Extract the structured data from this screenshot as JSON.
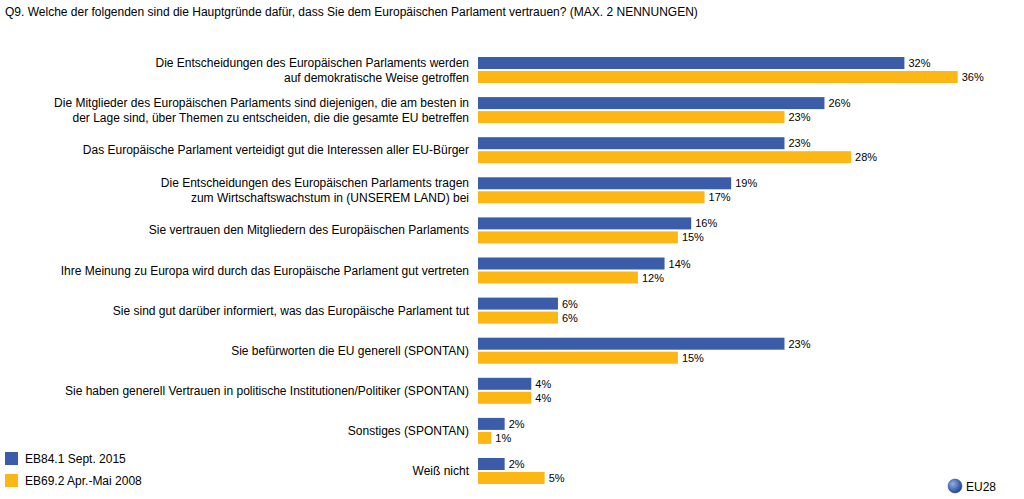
{
  "chart_data": {
    "type": "bar",
    "orientation": "horizontal",
    "title": "Q9. Welche der folgenden sind die Hauptgründe dafür, dass Sie dem Europäischen Parlament vertrauen? (MAX. 2 NENNUNGEN)",
    "categories": [
      "Die Entscheidungen des Europäischen Parlaments werden\nauf demokratische Weise getroffen",
      "Die Mitglieder des Europäischen Parlaments sind diejenigen, die am besten in\nder Lage sind, über Themen zu entscheiden, die die gesamte EU betreffen",
      "Das Europäische Parlament verteidigt gut die Interessen aller EU-Bürger",
      "Die Entscheidungen des Europäischen Parlaments tragen\nzum Wirtschaftswachstum in (UNSEREM LAND) bei",
      "Sie vertrauen den Mitgliedern des Europäischen Parlaments",
      "Ihre Meinung zu Europa wird durch das Europäische Parlament gut vertreten",
      "Sie sind gut darüber informiert, was das Europäische Parlament tut",
      "Sie befürworten die EU generell (SPONTAN)",
      "Sie haben generell Vertrauen in politische Institutionen/Politiker (SPONTAN)",
      "Sonstiges (SPONTAN)",
      "Weiß nicht"
    ],
    "series": [
      {
        "name": "EB84.1 Sept. 2015",
        "color": "#3b5ca8",
        "values": [
          32,
          26,
          23,
          19,
          16,
          14,
          6,
          23,
          4,
          2,
          2
        ],
        "value_labels": [
          "32%",
          "26%",
          "23%",
          "19%",
          "16%",
          "14%",
          "6%",
          "23%",
          "4%",
          "2%",
          "2%"
        ]
      },
      {
        "name": "EB69.2 Apr.-Mai 2008",
        "color": "#fdb714",
        "values": [
          36,
          23,
          28,
          17,
          15,
          12,
          6,
          15,
          4,
          1,
          5
        ],
        "value_labels": [
          "36%",
          "23%",
          "28%",
          "17%",
          "15%",
          "12%",
          "6%",
          "15%",
          "4%",
          "1%",
          "5%"
        ]
      }
    ],
    "xlim": [
      0,
      40
    ],
    "grid": false,
    "data_labels": true,
    "tick_labels": "y",
    "legend": "bottom-left",
    "annotation": "EU28"
  }
}
